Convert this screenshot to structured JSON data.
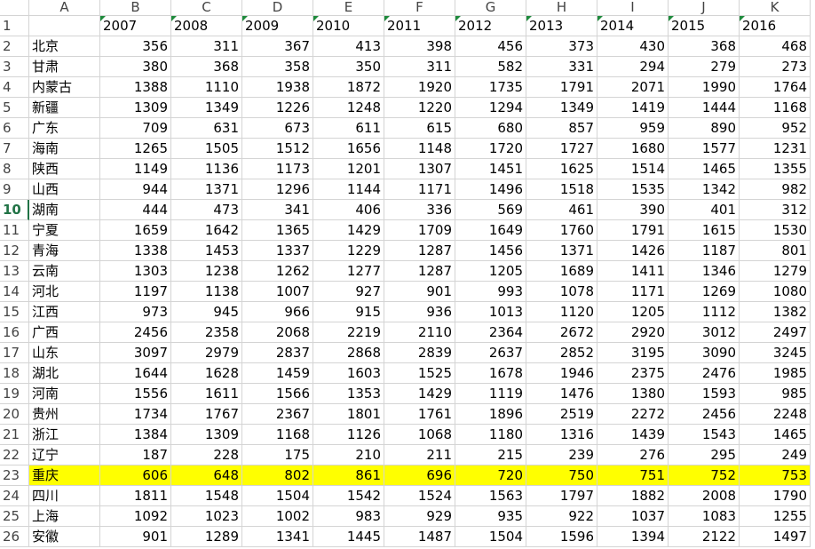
{
  "columns": [
    "A",
    "B",
    "C",
    "D",
    "E",
    "F",
    "G",
    "H",
    "I",
    "J",
    "K"
  ],
  "row_numbers": [
    1,
    2,
    3,
    4,
    5,
    6,
    7,
    8,
    9,
    10,
    11,
    12,
    13,
    14,
    15,
    16,
    17,
    18,
    19,
    20,
    21,
    22,
    23,
    24,
    25,
    26
  ],
  "header_row": [
    "2007",
    "2008",
    "2009",
    "2010",
    "2011",
    "2012",
    "2013",
    "2014",
    "2015",
    "2016"
  ],
  "rows": [
    {
      "name": "北京",
      "values": [
        356,
        311,
        367,
        413,
        398,
        456,
        373,
        430,
        368,
        468
      ]
    },
    {
      "name": "甘肃",
      "values": [
        380,
        368,
        358,
        350,
        311,
        582,
        331,
        294,
        279,
        273
      ]
    },
    {
      "name": "内蒙古",
      "values": [
        1388,
        1110,
        1938,
        1872,
        1920,
        1735,
        1791,
        2071,
        1990,
        1764
      ]
    },
    {
      "name": "新疆",
      "values": [
        1309,
        1349,
        1226,
        1248,
        1220,
        1294,
        1349,
        1419,
        1444,
        1168
      ]
    },
    {
      "name": "广东",
      "values": [
        709,
        631,
        673,
        611,
        615,
        680,
        857,
        959,
        890,
        952
      ]
    },
    {
      "name": "海南",
      "values": [
        1265,
        1505,
        1512,
        1656,
        1148,
        1720,
        1727,
        1680,
        1577,
        1231
      ]
    },
    {
      "name": "陕西",
      "values": [
        1149,
        1136,
        1173,
        1201,
        1307,
        1451,
        1625,
        1514,
        1465,
        1355
      ]
    },
    {
      "name": "山西",
      "values": [
        944,
        1371,
        1296,
        1144,
        1171,
        1496,
        1518,
        1535,
        1342,
        982
      ]
    },
    {
      "name": "湖南",
      "active": true,
      "values": [
        444,
        473,
        341,
        406,
        336,
        569,
        461,
        390,
        401,
        312
      ]
    },
    {
      "name": "宁夏",
      "values": [
        1659,
        1642,
        1365,
        1429,
        1709,
        1649,
        1760,
        1791,
        1615,
        1530
      ]
    },
    {
      "name": "青海",
      "values": [
        1338,
        1453,
        1337,
        1229,
        1287,
        1456,
        1371,
        1426,
        1187,
        801
      ]
    },
    {
      "name": "云南",
      "values": [
        1303,
        1238,
        1262,
        1277,
        1287,
        1205,
        1689,
        1411,
        1346,
        1279
      ]
    },
    {
      "name": "河北",
      "values": [
        1197,
        1138,
        1007,
        927,
        901,
        993,
        1078,
        1171,
        1269,
        1080
      ]
    },
    {
      "name": "江西",
      "values": [
        973,
        945,
        966,
        915,
        936,
        1013,
        1120,
        1205,
        1112,
        1382
      ]
    },
    {
      "name": "广西",
      "values": [
        2456,
        2358,
        2068,
        2219,
        2110,
        2364,
        2672,
        2920,
        3012,
        2497
      ]
    },
    {
      "name": "山东",
      "values": [
        3097,
        2979,
        2837,
        2868,
        2839,
        2637,
        2852,
        3195,
        3090,
        3245
      ]
    },
    {
      "name": "湖北",
      "values": [
        1644,
        1628,
        1459,
        1603,
        1525,
        1678,
        1946,
        2375,
        2476,
        1985
      ]
    },
    {
      "name": "河南",
      "values": [
        1556,
        1611,
        1566,
        1353,
        1429,
        1119,
        1476,
        1380,
        1593,
        985
      ]
    },
    {
      "name": "贵州",
      "values": [
        1734,
        1767,
        2367,
        1801,
        1761,
        1896,
        2519,
        2272,
        2456,
        2248
      ]
    },
    {
      "name": "浙江",
      "values": [
        1384,
        1309,
        1168,
        1126,
        1068,
        1180,
        1316,
        1439,
        1543,
        1465
      ]
    },
    {
      "name": "辽宁",
      "values": [
        187,
        228,
        175,
        210,
        211,
        215,
        239,
        276,
        295,
        249
      ]
    },
    {
      "name": "重庆",
      "fill": "#ffff00",
      "values": [
        606,
        648,
        802,
        861,
        696,
        720,
        750,
        751,
        752,
        753
      ]
    },
    {
      "name": "四川",
      "values": [
        1811,
        1548,
        1504,
        1542,
        1524,
        1563,
        1797,
        1882,
        2008,
        1790
      ]
    },
    {
      "name": "上海",
      "values": [
        1092,
        1023,
        1002,
        983,
        929,
        935,
        922,
        1037,
        1083,
        1255
      ]
    },
    {
      "name": "安徽",
      "values": [
        901,
        1289,
        1341,
        1445,
        1487,
        1504,
        1596,
        1394,
        2122,
        1497
      ]
    }
  ]
}
